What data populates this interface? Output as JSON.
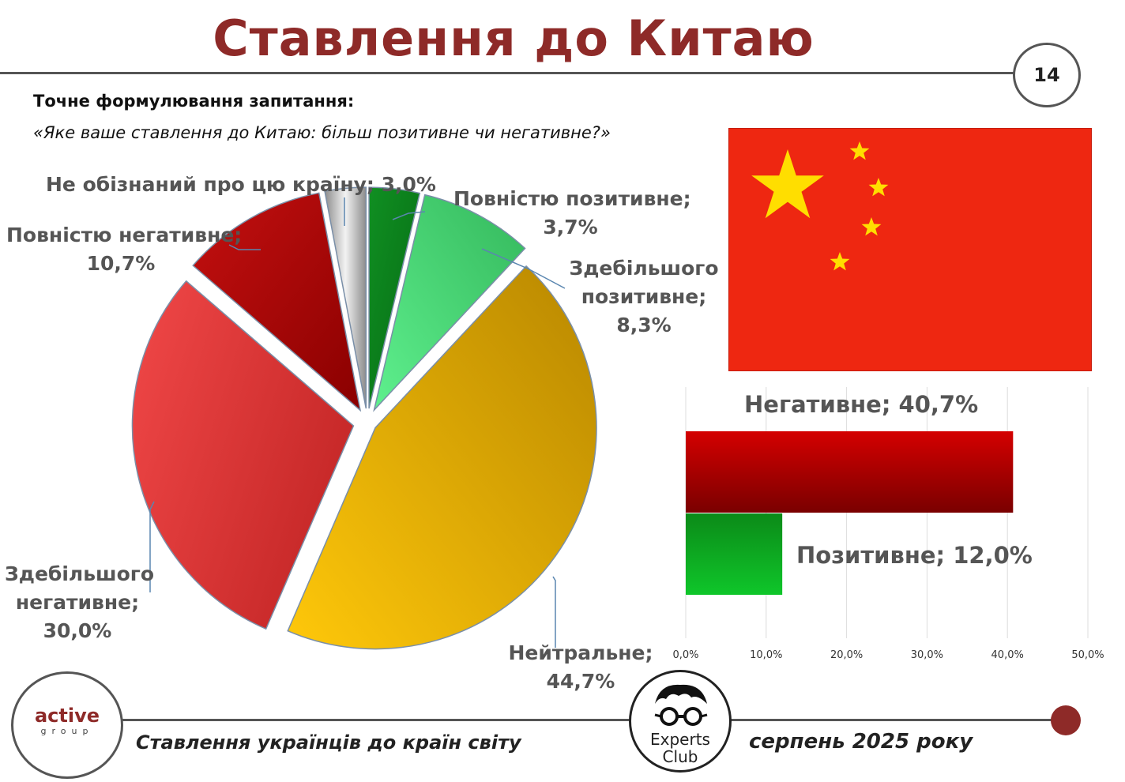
{
  "header": {
    "title": "Ставлення до Китаю",
    "page_number": "14"
  },
  "question": {
    "label": "Точне формулювання запитання:",
    "text": "«Яке ваше ставлення до Китаю: більш позитивне чи негативне?»"
  },
  "flag": {
    "name": "china-flag",
    "red": "#ee2711",
    "yellow": "#ffde00"
  },
  "chart_data": [
    {
      "type": "pie",
      "slices": [
        {
          "name": "Повністю позитивне",
          "value": 3.7,
          "label": "3,7%",
          "color": "#0e8a1e"
        },
        {
          "name": "Здебільшого позитивне",
          "value": 8.3,
          "label": "8,3%",
          "color": "#4fd87c"
        },
        {
          "name": "Нейтральне",
          "value": 44.7,
          "label": "44,7%",
          "color": "#e0a500"
        },
        {
          "name": "Здебільшого негативне",
          "value": 30.0,
          "label": "30,0%",
          "color": "#e53b3b"
        },
        {
          "name": "Повністю негативне",
          "value": 10.7,
          "label": "10,7%",
          "color": "#b30b0b"
        },
        {
          "name": "Не обізнаний про цю країну",
          "value": 3.0,
          "label": "3,0%",
          "color": "#a8a8a8"
        }
      ],
      "labels": {
        "full_pos": [
          "Повністю позитивне;",
          "3,7%"
        ],
        "most_pos": [
          "Здебільшого",
          "позитивне;",
          "8,3%"
        ],
        "neutral": [
          "Нейтральне;",
          "44,7%"
        ],
        "most_neg": [
          "Здебільшого",
          "негативне;",
          "30,0%"
        ],
        "full_neg": [
          "Повністю негативне;",
          "10,7%"
        ],
        "unaware": [
          "Не обізнаний про цю країну; 3,0%"
        ]
      }
    },
    {
      "type": "bar",
      "orientation": "horizontal",
      "categories": [
        "Негативне",
        "Позитивне"
      ],
      "values": [
        40.7,
        12.0
      ],
      "data_labels": [
        "Негативне; 40,7%",
        "Позитивне; 12,0%"
      ],
      "colors": [
        "#a00000",
        "#0aa31e"
      ],
      "xlim": [
        0,
        50
      ],
      "ticks": [
        "0,0%",
        "10,0%",
        "20,0%",
        "30,0%",
        "40,0%",
        "50,0%"
      ],
      "grid": true
    }
  ],
  "footer": {
    "active_logo_main": "active",
    "active_logo_sub": "group",
    "experts_logo_text": "Experts",
    "experts_logo_text2": "Club",
    "left_text": "Ставлення українців до країн світу",
    "right_text": "серпень 2025 року"
  }
}
